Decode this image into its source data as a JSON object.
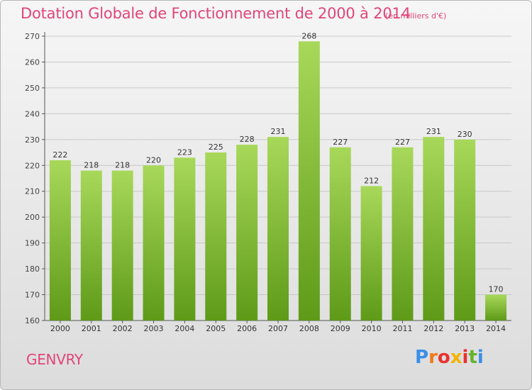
{
  "title": "Dotation Globale de Fonctionnement de 2000 à 2014",
  "subtitle": "(en milliers d'€)",
  "commune": "GENVRY",
  "logo": {
    "text": "Proxiti",
    "colors": [
      "#3a8ee6",
      "#ef7a1a",
      "#e8322e",
      "#f2b400",
      "#e8322e",
      "#64b32e",
      "#3a8ee6"
    ]
  },
  "colors": {
    "accent": "#e0457a",
    "bar_top": "#a8d85a",
    "bar_bottom": "#5e9a18",
    "grid": "#c8c8c8"
  },
  "chart_data": {
    "type": "bar",
    "categories": [
      "2000",
      "2001",
      "2002",
      "2003",
      "2004",
      "2005",
      "2006",
      "2007",
      "2008",
      "2009",
      "2010",
      "2011",
      "2012",
      "2013",
      "2014"
    ],
    "values": [
      222,
      218,
      218,
      220,
      223,
      225,
      228,
      231,
      268,
      227,
      212,
      227,
      231,
      230,
      170
    ],
    "ylim": [
      160,
      270
    ],
    "yticks": [
      160,
      170,
      180,
      190,
      200,
      210,
      220,
      230,
      240,
      250,
      260,
      270
    ],
    "grid": true,
    "xlabel": "",
    "ylabel": ""
  }
}
